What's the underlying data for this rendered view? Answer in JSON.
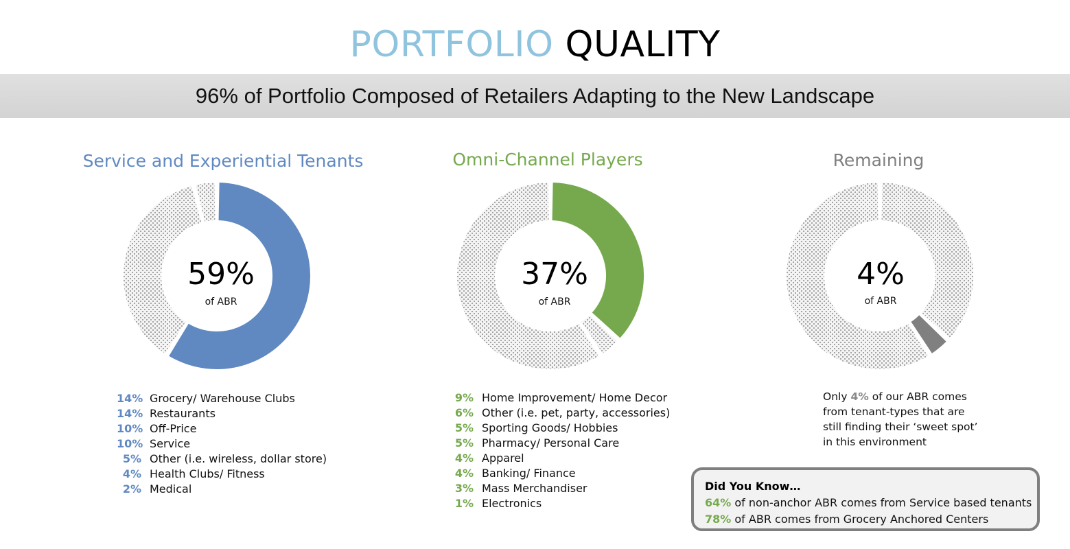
{
  "header": {
    "title_part1": "PORTFOLIO",
    "title_part2": "QUALITY",
    "banner": "96% of Portfolio Composed of Retailers Adapting to the New Landscape"
  },
  "colors": {
    "service": "#6089c1",
    "omni": "#76a94e",
    "remaining": "#808080",
    "remaining_title": "#7f7f7f",
    "pattern_fill": "#f4f4f4",
    "pattern_dot": "#8a8a8a"
  },
  "chart_data": [
    {
      "type": "pie",
      "title": "Service and Experiential Tenants",
      "center_value": "59%",
      "center_label": "of ABR",
      "highlight_value": 59,
      "segments": [
        59,
        37,
        4
      ],
      "breakdown": [
        {
          "value": "14%",
          "label": "Grocery/ Warehouse Clubs"
        },
        {
          "value": "14%",
          "label": "Restaurants"
        },
        {
          "value": "10%",
          "label": "Off-Price"
        },
        {
          "value": "10%",
          "label": "Service"
        },
        {
          "value": "5%",
          "label": "Other (i.e. wireless, dollar store)"
        },
        {
          "value": "4%",
          "label": "Health Clubs/ Fitness"
        },
        {
          "value": "2%",
          "label": "Medical"
        }
      ]
    },
    {
      "type": "pie",
      "title": "Omni-Channel Players",
      "center_value": "37%",
      "center_label": "of ABR",
      "highlight_value": 37,
      "segments": [
        37,
        4,
        59
      ],
      "breakdown": [
        {
          "value": "9%",
          "label": "Home Improvement/ Home Decor"
        },
        {
          "value": "6%",
          "label": "Other (i.e. pet, party, accessories)"
        },
        {
          "value": "5%",
          "label": "Sporting Goods/ Hobbies"
        },
        {
          "value": "5%",
          "label": "Pharmacy/ Personal Care"
        },
        {
          "value": "4%",
          "label": "Apparel"
        },
        {
          "value": "4%",
          "label": "Banking/  Finance"
        },
        {
          "value": "3%",
          "label": "Mass Merchandiser"
        },
        {
          "value": "1%",
          "label": "Electronics"
        }
      ]
    },
    {
      "type": "pie",
      "title": "Remaining",
      "center_value": "4%",
      "center_label": "of ABR",
      "highlight_value": 4,
      "segments": [
        37,
        4,
        59
      ]
    }
  ],
  "remaining_note": {
    "prefix": "Only ",
    "highlight": "4%",
    "suffix": " of our ABR comes from tenant-types that are still finding their ‘sweet spot’ in this environment"
  },
  "did_you_know": {
    "heading": "Did You Know…",
    "lines": [
      {
        "value": "64%",
        "text": " of non-anchor ABR comes from Service based tenants"
      },
      {
        "value": "78%",
        "text": " of ABR comes from Grocery Anchored Centers"
      }
    ]
  }
}
